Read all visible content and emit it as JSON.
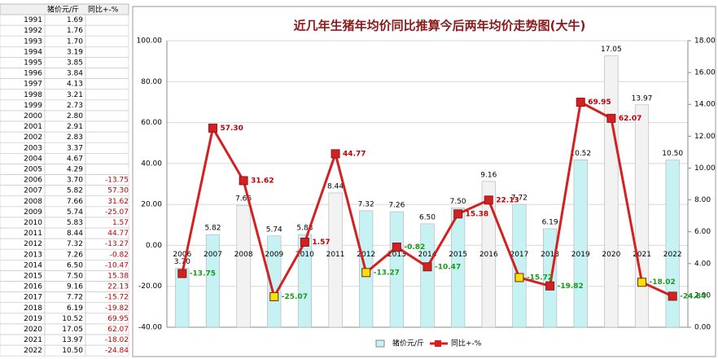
{
  "spreadsheet": {
    "header": [
      "猪价元/斤",
      "同比+-%"
    ],
    "rows": [
      [
        "1991",
        "1.69"
      ],
      [
        "1992",
        "1.76"
      ],
      [
        "1993",
        "1.70"
      ],
      [
        "1994",
        "3.19"
      ],
      [
        "1995",
        "3.85"
      ],
      [
        "1996",
        "3.84"
      ],
      [
        "1997",
        "4.13"
      ],
      [
        "1998",
        "3.21"
      ],
      [
        "1999",
        "2.73"
      ],
      [
        "2000",
        "2.80"
      ],
      [
        "2001",
        "2.91"
      ],
      [
        "2002",
        "2.83"
      ],
      [
        "2003",
        "3.37"
      ],
      [
        "2004",
        "4.67"
      ],
      [
        "2005",
        "4.29"
      ],
      [
        "2006",
        "3.70",
        "-13.75"
      ],
      [
        "2007",
        "5.82",
        "57.30"
      ],
      [
        "2008",
        "7.66",
        "31.62"
      ],
      [
        "2009",
        "5.74",
        "-25.07"
      ],
      [
        "2010",
        "5.83",
        "1.57"
      ],
      [
        "2011",
        "8.44",
        "44.77"
      ],
      [
        "2012",
        "7.32",
        "-13.27"
      ],
      [
        "2013",
        "7.26",
        "-0.82"
      ],
      [
        "2014",
        "6.50",
        "-10.47"
      ],
      [
        "2015",
        "7.50",
        "15.38"
      ],
      [
        "2016",
        "9.16",
        "22.13"
      ],
      [
        "2017",
        "7.72",
        "-15.72"
      ],
      [
        "2018",
        "6.19",
        "-19.82"
      ],
      [
        "2019",
        "10.52",
        "69.95"
      ],
      [
        "2020",
        "17.05",
        "62.07"
      ],
      [
        "2021",
        "13.97",
        "-18.02"
      ],
      [
        "2022",
        "10.50",
        "-24.84"
      ]
    ]
  },
  "chart_data": {
    "type": "bar-line",
    "title": "近几年生猪年均价同比推算今后两年均价走势图(大牛)",
    "categories": [
      "2006",
      "2007",
      "2008",
      "2009",
      "2010",
      "2011",
      "2012",
      "2013",
      "2014",
      "2015",
      "2016",
      "2017",
      "2018",
      "2019",
      "2020",
      "2021",
      "2022"
    ],
    "series": [
      {
        "name": "猪价元/斤",
        "type": "bar",
        "axis": "y2",
        "color": "#c6f2f4",
        "bar_colors": [
          "#c6f2f4",
          "#c6f2f4",
          "#f2f2f2",
          "#c6f2f4",
          "#c6f2f4",
          "#f2f2f2",
          "#c6f2f4",
          "#c6f2f4",
          "#c6f2f4",
          "#c6f2f4",
          "#f2f2f2",
          "#c6f2f4",
          "#c6f2f4",
          "#c6f2f4",
          "#f2f2f2",
          "#f2f2f2",
          "#c6f2f4"
        ],
        "values": [
          3.7,
          5.82,
          7.66,
          5.74,
          5.83,
          8.44,
          7.32,
          7.26,
          6.5,
          7.5,
          9.16,
          7.72,
          6.19,
          10.52,
          17.05,
          13.97,
          10.5
        ],
        "value_labels": [
          "3.70",
          "5.82",
          "7.66",
          "5.74",
          "5.83",
          "8.44",
          "7.32",
          "7.26",
          "6.50",
          "7.50",
          "9.16",
          "7.72",
          "6.19",
          "10.52",
          "17.05",
          "13.97",
          "10.50"
        ]
      },
      {
        "name": "同比+-%",
        "type": "line",
        "axis": "y",
        "color": "#d42020",
        "marker_colors": [
          "#d42020",
          "#d42020",
          "#d42020",
          "#f5e400",
          "#d42020",
          "#d42020",
          "#f5e400",
          "#d42020",
          "#d42020",
          "#d42020",
          "#d42020",
          "#f5e400",
          "#d42020",
          "#d42020",
          "#d42020",
          "#f5e400",
          "#d42020"
        ],
        "values": [
          -13.75,
          57.3,
          31.62,
          -25.07,
          1.57,
          44.77,
          -13.27,
          -0.82,
          -10.47,
          15.38,
          22.13,
          -15.72,
          -19.82,
          69.95,
          62.07,
          -18.02,
          -24.84
        ],
        "value_labels": [
          "-13.75",
          "57.30",
          "31.62",
          "-25.07",
          "1.57",
          "44.77",
          "-13.27",
          "-0.82",
          "-10.47",
          "15.38",
          "22.13",
          "-15.72",
          "-19.82",
          "69.95",
          "62.07",
          "-18.02",
          "-24.84"
        ]
      }
    ],
    "ylim": [
      -40,
      100
    ],
    "yticks": [
      {
        "value": -40,
        "label": "-40.00"
      },
      {
        "value": -20,
        "label": "-20.00"
      },
      {
        "value": 0,
        "label": "0.00"
      },
      {
        "value": 20,
        "label": "20.00"
      },
      {
        "value": 40,
        "label": "40.00"
      },
      {
        "value": 60,
        "label": "60.00"
      },
      {
        "value": 80,
        "label": "80.00"
      },
      {
        "value": 100,
        "label": "100.00"
      }
    ],
    "y2lim": [
      0,
      18
    ],
    "y2ticks": [
      {
        "value": 0,
        "label": "0.00"
      },
      {
        "value": 2,
        "label": "2.00"
      },
      {
        "value": 4,
        "label": "4.00"
      },
      {
        "value": 6,
        "label": "6.00"
      },
      {
        "value": 8,
        "label": "8.00"
      },
      {
        "value": 10,
        "label": "10.00"
      },
      {
        "value": 12,
        "label": "12.00"
      },
      {
        "value": 14,
        "label": "14.00"
      },
      {
        "value": 16,
        "label": "16.00"
      },
      {
        "value": 18,
        "label": "18.00"
      }
    ],
    "grid": true,
    "legend": "bottom"
  }
}
